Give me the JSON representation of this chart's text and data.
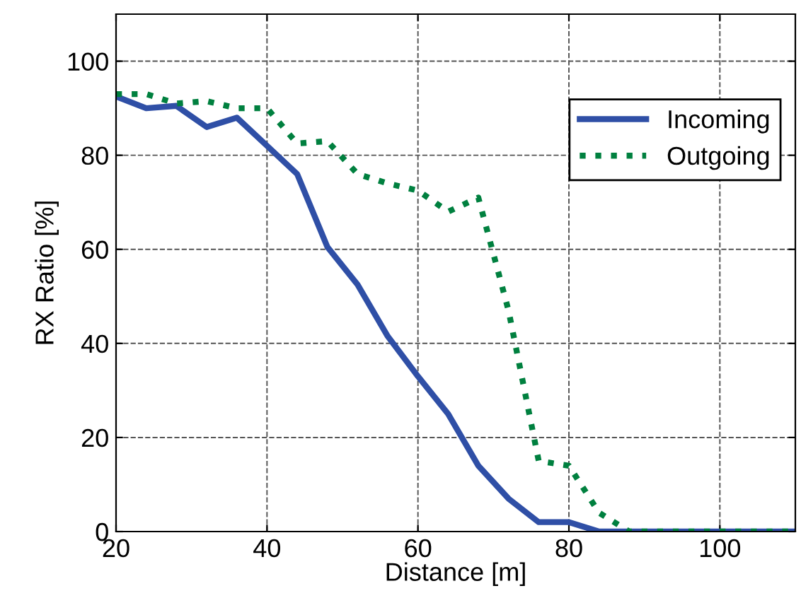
{
  "chart_data": {
    "type": "line",
    "xlabel": "Distance [m]",
    "ylabel": "RX Ratio [%]",
    "x": [
      20,
      24,
      28,
      32,
      36,
      40,
      44,
      48,
      52,
      56,
      60,
      64,
      68,
      72,
      76,
      80,
      84,
      88,
      92,
      96,
      100,
      104,
      108,
      110
    ],
    "series": [
      {
        "name": "Incoming",
        "color": "#2f4fa6",
        "line_style": "solid",
        "values": [
          92.5,
          90,
          90.5,
          86,
          88,
          82,
          76,
          60.5,
          52.5,
          41.5,
          33,
          25,
          14,
          7,
          2,
          2,
          0,
          0,
          0,
          0,
          0,
          0,
          0,
          0
        ]
      },
      {
        "name": "Outgoing",
        "color": "#00803f",
        "line_style": "dotted",
        "values": [
          93,
          93,
          91,
          91.5,
          90,
          90,
          82.5,
          83,
          76,
          74,
          72.5,
          68,
          71,
          47,
          15,
          14,
          4,
          0,
          0,
          0,
          0,
          0,
          0,
          0
        ]
      }
    ],
    "xlim": [
      20,
      110
    ],
    "xticks": [
      20,
      40,
      60,
      80,
      100
    ],
    "ylim": [
      0,
      110
    ],
    "yticks": [
      0,
      20,
      40,
      60,
      80,
      100
    ],
    "grid": true,
    "legend": "top right",
    "marker": "none"
  }
}
